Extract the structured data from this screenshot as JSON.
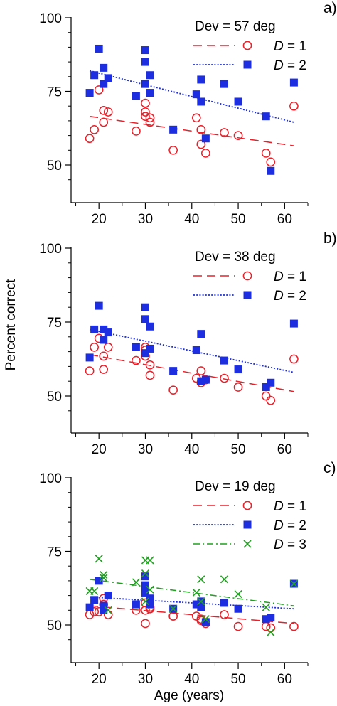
{
  "figure": {
    "ylabel": "Percent correct",
    "xlabel": "Age (years)",
    "legend_style": {
      "D1_color": "#e8202a",
      "D2_color": "#1c2ee0",
      "D3_color": "#1fa01f"
    }
  },
  "chart_data": [
    {
      "type": "scatter",
      "panel": "a)",
      "legend_title": "Dev = 57 deg",
      "legend_position": "top-right",
      "xlim": [
        14,
        65
      ],
      "ylim": [
        43,
        100
      ],
      "xticks": [
        20,
        30,
        40,
        50,
        60
      ],
      "xtick_labels": [
        "20",
        "30",
        "40",
        "50",
        "60"
      ],
      "yticks": [
        50,
        75,
        100
      ],
      "ytick_labels": [
        "50",
        "75",
        "100"
      ],
      "series": [
        {
          "name": "D = 1",
          "legend_label": "= 1",
          "marker": "open-circle",
          "color": "#e8202a",
          "line_style": "dashed",
          "points": [
            [
              18,
              59
            ],
            [
              19,
              62
            ],
            [
              20,
              75.5
            ],
            [
              21,
              64.5
            ],
            [
              21,
              68.5
            ],
            [
              22,
              68
            ],
            [
              28,
              61.5
            ],
            [
              30,
              66.5
            ],
            [
              30,
              68
            ],
            [
              30,
              71
            ],
            [
              31,
              64.5
            ],
            [
              31,
              66
            ],
            [
              36,
              55
            ],
            [
              41,
              66
            ],
            [
              42,
              62
            ],
            [
              42,
              57
            ],
            [
              43,
              54
            ],
            [
              47,
              61
            ],
            [
              50,
              60
            ],
            [
              56,
              54
            ],
            [
              57,
              51
            ],
            [
              62,
              70
            ]
          ],
          "fit": [
            [
              18,
              66.5
            ],
            [
              62,
              56.5
            ]
          ]
        },
        {
          "name": "D = 2",
          "legend_label": "= 2",
          "marker": "filled-square",
          "color": "#1c2ee0",
          "line_style": "dotted",
          "points": [
            [
              18,
              74.5
            ],
            [
              19,
              80.5
            ],
            [
              20,
              89.5
            ],
            [
              21,
              77.5
            ],
            [
              21,
              83
            ],
            [
              22,
              79.5
            ],
            [
              28,
              73.5
            ],
            [
              30,
              77.5
            ],
            [
              30,
              85
            ],
            [
              30,
              89
            ],
            [
              31,
              80.5
            ],
            [
              31,
              74.5
            ],
            [
              36,
              62
            ],
            [
              41,
              74
            ],
            [
              42,
              79
            ],
            [
              42,
              71.5
            ],
            [
              43,
              59
            ],
            [
              47,
              77.5
            ],
            [
              50,
              71.5
            ],
            [
              56,
              66.5
            ],
            [
              57,
              48
            ],
            [
              62,
              78
            ]
          ],
          "fit": [
            [
              18,
              82
            ],
            [
              62,
              64.5
            ]
          ]
        }
      ]
    },
    {
      "type": "scatter",
      "panel": "b)",
      "legend_title": "Dev = 38 deg",
      "legend_position": "top-right",
      "xlim": [
        14,
        65
      ],
      "ylim": [
        43,
        100
      ],
      "xticks": [
        20,
        30,
        40,
        50,
        60
      ],
      "xtick_labels": [
        "20",
        "30",
        "40",
        "50",
        "60"
      ],
      "yticks": [
        50,
        75,
        100
      ],
      "ytick_labels": [
        "50",
        "75",
        "100"
      ],
      "series": [
        {
          "name": "D = 1",
          "legend_label": "= 1",
          "marker": "open-circle",
          "color": "#e8202a",
          "line_style": "dashed",
          "points": [
            [
              18,
              58.5
            ],
            [
              19,
              66.5
            ],
            [
              20,
              69.5
            ],
            [
              21,
              59
            ],
            [
              21,
              63.5
            ],
            [
              22,
              66.5
            ],
            [
              28,
              62
            ],
            [
              30,
              63.5
            ],
            [
              30,
              65.5
            ],
            [
              30,
              66.5
            ],
            [
              31,
              60.5
            ],
            [
              31,
              57
            ],
            [
              36,
              52
            ],
            [
              41,
              56
            ],
            [
              42,
              58.5
            ],
            [
              42,
              54.5
            ],
            [
              43,
              55.5
            ],
            [
              47,
              56
            ],
            [
              50,
              53
            ],
            [
              56,
              50
            ],
            [
              57,
              48.5
            ],
            [
              62,
              62.5
            ]
          ],
          "fit": [
            [
              18,
              64
            ],
            [
              62,
              51.5
            ]
          ]
        },
        {
          "name": "D = 2",
          "legend_label": "= 2",
          "marker": "filled-square",
          "color": "#1c2ee0",
          "line_style": "dotted",
          "points": [
            [
              18,
              63
            ],
            [
              19,
              72.5
            ],
            [
              20,
              80.5
            ],
            [
              21,
              69
            ],
            [
              21,
              72.5
            ],
            [
              22,
              71.5
            ],
            [
              28,
              66.5
            ],
            [
              30,
              64.5
            ],
            [
              30,
              76
            ],
            [
              30,
              80
            ],
            [
              31,
              73.5
            ],
            [
              31,
              66
            ],
            [
              36,
              58.5
            ],
            [
              41,
              65.5
            ],
            [
              42,
              71
            ],
            [
              42,
              55
            ],
            [
              43,
              55.5
            ],
            [
              47,
              62
            ],
            [
              50,
              59
            ],
            [
              56,
              53
            ],
            [
              57,
              54.5
            ],
            [
              62,
              74.5
            ]
          ],
          "fit": [
            [
              18,
              72.5
            ],
            [
              62,
              58
            ]
          ]
        }
      ]
    },
    {
      "type": "scatter",
      "panel": "c)",
      "legend_title": "Dev = 19 deg",
      "legend_position": "top-right",
      "xlim": [
        14,
        65
      ],
      "ylim": [
        43,
        100
      ],
      "xticks": [
        20,
        30,
        40,
        50,
        60
      ],
      "xtick_labels": [
        "20",
        "30",
        "40",
        "50",
        "60"
      ],
      "yticks": [
        50,
        75,
        100
      ],
      "ytick_labels": [
        "50",
        "75",
        "100"
      ],
      "series": [
        {
          "name": "D = 1",
          "legend_label": "= 1",
          "marker": "open-circle",
          "color": "#e8202a",
          "line_style": "dashed",
          "points": [
            [
              18,
              53.5
            ],
            [
              19,
              54.5
            ],
            [
              20,
              54.5
            ],
            [
              21,
              57
            ],
            [
              21,
              59
            ],
            [
              22,
              53.5
            ],
            [
              28,
              55
            ],
            [
              30,
              50.5
            ],
            [
              30,
              55
            ],
            [
              30,
              57.5
            ],
            [
              31,
              55.5
            ],
            [
              31,
              56
            ],
            [
              36,
              53
            ],
            [
              41,
              53
            ],
            [
              42,
              52
            ],
            [
              42,
              51.5
            ],
            [
              43,
              50.5
            ],
            [
              47,
              53.5
            ],
            [
              50,
              49.5
            ],
            [
              56,
              49.5
            ],
            [
              57,
              49
            ],
            [
              62,
              49.5
            ]
          ],
          "fit": [
            [
              18,
              56.5
            ],
            [
              62,
              50.5
            ]
          ]
        },
        {
          "name": "D = 2",
          "legend_label": "= 2",
          "marker": "filled-square",
          "color": "#1c2ee0",
          "line_style": "dotted",
          "points": [
            [
              18,
              56
            ],
            [
              19,
              58.5
            ],
            [
              20,
              65
            ],
            [
              21,
              55
            ],
            [
              21,
              56.5
            ],
            [
              22,
              60
            ],
            [
              28,
              57
            ],
            [
              30,
              61
            ],
            [
              30,
              63.5
            ],
            [
              30,
              66.5
            ],
            [
              31,
              57
            ],
            [
              31,
              59
            ],
            [
              36,
              55.5
            ],
            [
              41,
              57
            ],
            [
              42,
              58
            ],
            [
              42,
              56
            ],
            [
              43,
              51
            ],
            [
              47,
              57.5
            ],
            [
              50,
              55.5
            ],
            [
              56,
              52
            ],
            [
              57,
              52.5
            ],
            [
              62,
              64
            ]
          ],
          "fit": [
            [
              18,
              59.5
            ],
            [
              62,
              55.5
            ]
          ]
        },
        {
          "name": "D = 3",
          "legend_label": "= 3",
          "marker": "cross",
          "color": "#1fa01f",
          "line_style": "dashdot",
          "points": [
            [
              18,
              61.5
            ],
            [
              19,
              61.5
            ],
            [
              20,
              72.5
            ],
            [
              21,
              66
            ],
            [
              21,
              67
            ],
            [
              22,
              55
            ],
            [
              28,
              64.5
            ],
            [
              30,
              58
            ],
            [
              30,
              67.5
            ],
            [
              30,
              72
            ],
            [
              31,
              72
            ],
            [
              31,
              62
            ],
            [
              36,
              55.5
            ],
            [
              41,
              61
            ],
            [
              42,
              58
            ],
            [
              42,
              65.5
            ],
            [
              43,
              52
            ],
            [
              47,
              65.5
            ],
            [
              50,
              60.5
            ],
            [
              56,
              56
            ],
            [
              57,
              47.5
            ],
            [
              62,
              64
            ]
          ],
          "fit": [
            [
              18,
              65.5
            ],
            [
              62,
              56.5
            ]
          ]
        }
      ]
    }
  ]
}
